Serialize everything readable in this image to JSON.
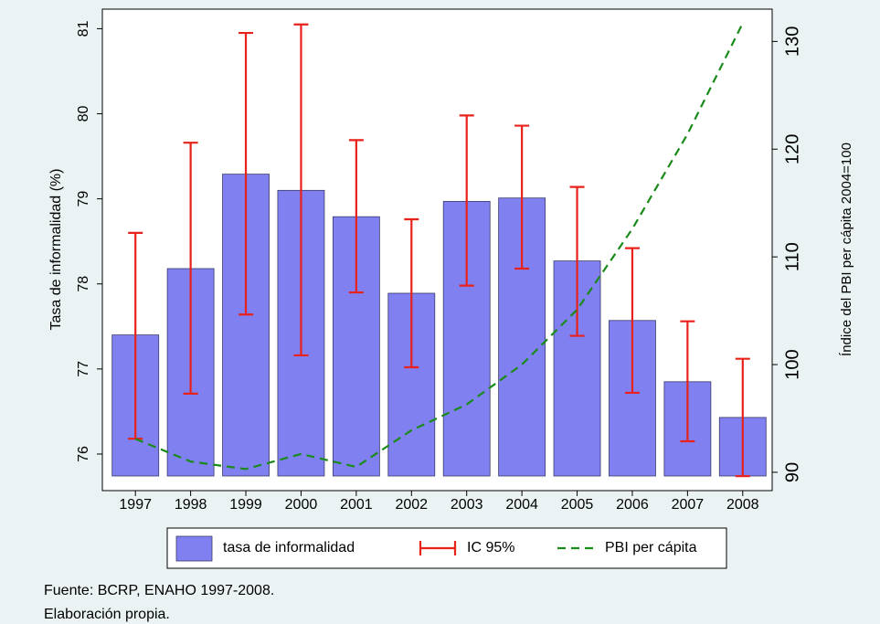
{
  "chart_data": {
    "type": "bar",
    "categories": [
      "1997",
      "1998",
      "1999",
      "2000",
      "2001",
      "2002",
      "2003",
      "2004",
      "2005",
      "2006",
      "2007",
      "2008"
    ],
    "series": [
      {
        "name": "tasa de informalidad",
        "color": "#8080f0",
        "values": [
          77.4,
          78.18,
          79.29,
          79.1,
          78.79,
          77.89,
          78.97,
          79.01,
          78.27,
          77.57,
          76.85,
          76.43
        ]
      },
      {
        "name": "IC 95%",
        "color": "#e8211a",
        "upper": [
          78.6,
          79.66,
          80.95,
          81.05,
          79.69,
          78.76,
          79.98,
          79.86,
          79.14,
          78.42,
          77.56,
          77.12
        ],
        "lower": [
          76.18,
          76.71,
          77.64,
          77.16,
          77.9,
          77.02,
          77.98,
          78.18,
          77.39,
          76.72,
          76.15,
          75.74
        ]
      },
      {
        "name": "PBI per cápita",
        "color": "#1a8a1a",
        "axis": "y2",
        "values": [
          93.1,
          91.0,
          90.3,
          91.7,
          90.5,
          93.9,
          96.3,
          100,
          105.1,
          112.6,
          121.4,
          131.7
        ]
      }
    ],
    "ylabel": "Tasa de informalidad (%)",
    "y2label": "Índice del PBI per cápita 2004=100",
    "ylim": [
      75.57,
      81.23
    ],
    "yticks": [
      76,
      77,
      78,
      79,
      80,
      81
    ],
    "y2lim": [
      88.3,
      133
    ],
    "y2ticks": [
      90,
      100,
      110,
      120,
      130
    ],
    "grid": false,
    "notes": [
      "Fuente: BCRP, ENAHO 1997-2008.",
      "Elaboración propia."
    ]
  }
}
